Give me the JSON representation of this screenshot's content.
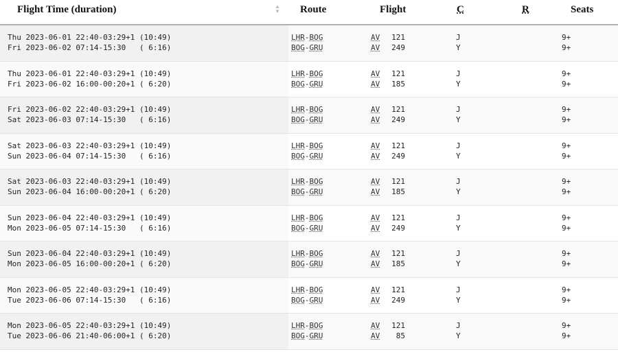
{
  "headers": {
    "time": "Flight Time (duration)",
    "route": "Route",
    "flight": "Flight",
    "c": "C",
    "r": "R",
    "seats": "Seats"
  },
  "rows": [
    {
      "legs": [
        {
          "time": "Thu 2023-06-01 22:40-03:29+1 (10:49)",
          "from": "LHR",
          "to": "BOG",
          "airline": "AV",
          "num": "121",
          "cls": "J",
          "seats": "9+"
        },
        {
          "time": "Fri 2023-06-02 07:14-15:30   ( 6:16)",
          "from": "BOG",
          "to": "GRU",
          "airline": "AV",
          "num": "249",
          "cls": "Y",
          "seats": "9+"
        }
      ]
    },
    {
      "legs": [
        {
          "time": "Thu 2023-06-01 22:40-03:29+1 (10:49)",
          "from": "LHR",
          "to": "BOG",
          "airline": "AV",
          "num": "121",
          "cls": "J",
          "seats": "9+"
        },
        {
          "time": "Fri 2023-06-02 16:00-00:20+1 ( 6:20)",
          "from": "BOG",
          "to": "GRU",
          "airline": "AV",
          "num": "185",
          "cls": "Y",
          "seats": "9+"
        }
      ]
    },
    {
      "legs": [
        {
          "time": "Fri 2023-06-02 22:40-03:29+1 (10:49)",
          "from": "LHR",
          "to": "BOG",
          "airline": "AV",
          "num": "121",
          "cls": "J",
          "seats": "9+"
        },
        {
          "time": "Sat 2023-06-03 07:14-15:30   ( 6:16)",
          "from": "BOG",
          "to": "GRU",
          "airline": "AV",
          "num": "249",
          "cls": "Y",
          "seats": "9+"
        }
      ]
    },
    {
      "legs": [
        {
          "time": "Sat 2023-06-03 22:40-03:29+1 (10:49)",
          "from": "LHR",
          "to": "BOG",
          "airline": "AV",
          "num": "121",
          "cls": "J",
          "seats": "9+"
        },
        {
          "time": "Sun 2023-06-04 07:14-15:30   ( 6:16)",
          "from": "BOG",
          "to": "GRU",
          "airline": "AV",
          "num": "249",
          "cls": "Y",
          "seats": "9+"
        }
      ]
    },
    {
      "legs": [
        {
          "time": "Sat 2023-06-03 22:40-03:29+1 (10:49)",
          "from": "LHR",
          "to": "BOG",
          "airline": "AV",
          "num": "121",
          "cls": "J",
          "seats": "9+"
        },
        {
          "time": "Sun 2023-06-04 16:00-00:20+1 ( 6:20)",
          "from": "BOG",
          "to": "GRU",
          "airline": "AV",
          "num": "185",
          "cls": "Y",
          "seats": "9+"
        }
      ]
    },
    {
      "legs": [
        {
          "time": "Sun 2023-06-04 22:40-03:29+1 (10:49)",
          "from": "LHR",
          "to": "BOG",
          "airline": "AV",
          "num": "121",
          "cls": "J",
          "seats": "9+"
        },
        {
          "time": "Mon 2023-06-05 07:14-15:30   ( 6:16)",
          "from": "BOG",
          "to": "GRU",
          "airline": "AV",
          "num": "249",
          "cls": "Y",
          "seats": "9+"
        }
      ]
    },
    {
      "legs": [
        {
          "time": "Sun 2023-06-04 22:40-03:29+1 (10:49)",
          "from": "LHR",
          "to": "BOG",
          "airline": "AV",
          "num": "121",
          "cls": "J",
          "seats": "9+"
        },
        {
          "time": "Mon 2023-06-05 16:00-00:20+1 ( 6:20)",
          "from": "BOG",
          "to": "GRU",
          "airline": "AV",
          "num": "185",
          "cls": "Y",
          "seats": "9+"
        }
      ]
    },
    {
      "legs": [
        {
          "time": "Mon 2023-06-05 22:40-03:29+1 (10:49)",
          "from": "LHR",
          "to": "BOG",
          "airline": "AV",
          "num": "121",
          "cls": "J",
          "seats": "9+"
        },
        {
          "time": "Tue 2023-06-06 07:14-15:30   ( 6:16)",
          "from": "BOG",
          "to": "GRU",
          "airline": "AV",
          "num": "249",
          "cls": "Y",
          "seats": "9+"
        }
      ]
    },
    {
      "legs": [
        {
          "time": "Mon 2023-06-05 22:40-03:29+1 (10:49)",
          "from": "LHR",
          "to": "BOG",
          "airline": "AV",
          "num": "121",
          "cls": "J",
          "seats": "9+"
        },
        {
          "time": "Tue 2023-06-06 21:40-06:00+1 ( 6:20)",
          "from": "BOG",
          "to": "GRU",
          "airline": "AV",
          "num": "85",
          "cls": "Y",
          "seats": "9+"
        }
      ]
    }
  ]
}
